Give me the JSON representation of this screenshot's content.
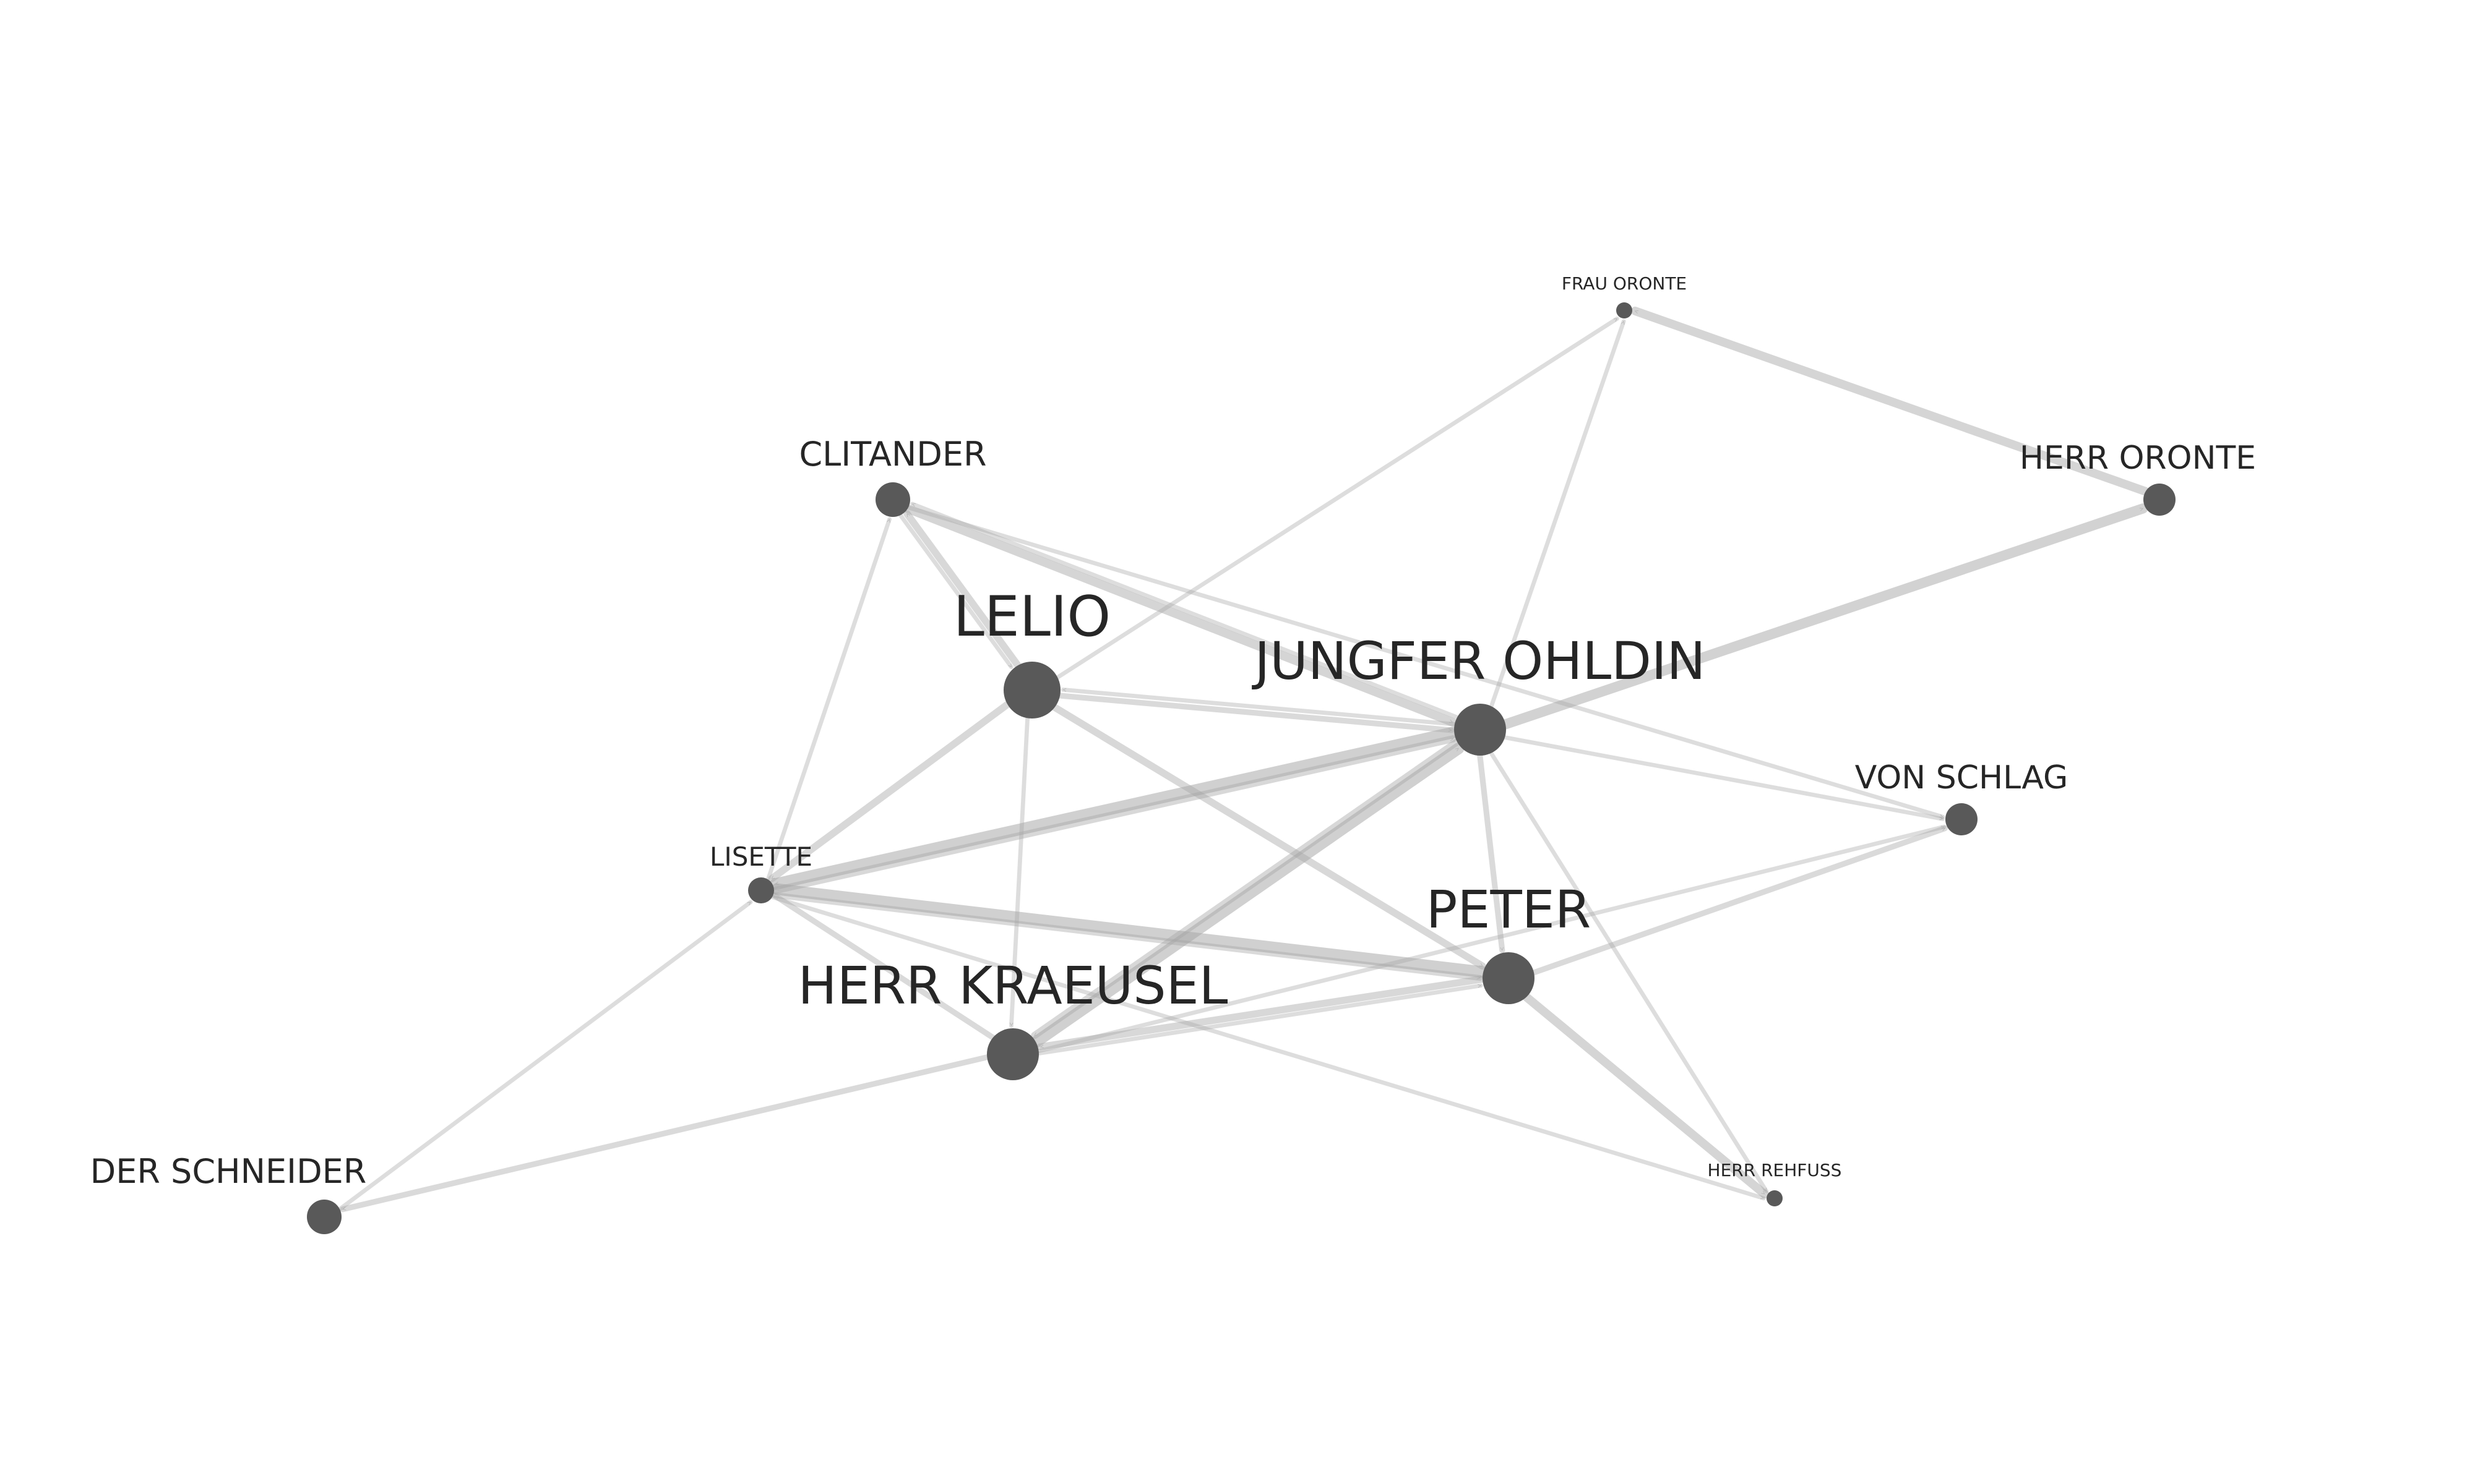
{
  "graph": {
    "style": {
      "node_color": "#595959",
      "edge_color": "#a6a6a6",
      "label_color": "#262626",
      "background": "#ffffff"
    },
    "nodes": [
      {
        "id": "frau_oronte",
        "label": "FRAU ORONTE",
        "weight": 1
      },
      {
        "id": "herr_oronte",
        "label": "HERR ORONTE",
        "weight": 3
      },
      {
        "id": "clitander",
        "label": "CLITANDER",
        "weight": 3
      },
      {
        "id": "lelio",
        "label": "LELIO",
        "weight": 6
      },
      {
        "id": "jungfer_ohldin",
        "label": "JUNGFER OHLDIN",
        "weight": 5
      },
      {
        "id": "von_schlag",
        "label": "VON SCHLAG",
        "weight": 3
      },
      {
        "id": "lisette",
        "label": "LISETTE",
        "weight": 2
      },
      {
        "id": "peter",
        "label": "PETER",
        "weight": 5
      },
      {
        "id": "herr_kraeusel",
        "label": "HERR KRAEUSEL",
        "weight": 5
      },
      {
        "id": "der_schneider",
        "label": "DER SCHNEIDER",
        "weight": 3
      },
      {
        "id": "herr_rehfuss",
        "label": "HERR REHFUSS",
        "weight": 1
      }
    ],
    "edges": [
      {
        "source": "herr_oronte",
        "target": "frau_oronte",
        "weight": 5
      },
      {
        "source": "jungfer_ohldin",
        "target": "herr_oronte",
        "weight": 6
      },
      {
        "source": "lelio",
        "target": "frau_oronte",
        "weight": 2
      },
      {
        "source": "jungfer_ohldin",
        "target": "frau_oronte",
        "weight": 2
      },
      {
        "source": "clitander",
        "target": "jungfer_ohldin",
        "weight": 5
      },
      {
        "source": "jungfer_ohldin",
        "target": "clitander",
        "weight": 2
      },
      {
        "source": "lelio",
        "target": "clitander",
        "weight": 4
      },
      {
        "source": "clitander",
        "target": "lelio",
        "weight": 2
      },
      {
        "source": "lisette",
        "target": "clitander",
        "weight": 2
      },
      {
        "source": "lelio",
        "target": "jungfer_ohldin",
        "weight": 3
      },
      {
        "source": "jungfer_ohldin",
        "target": "lelio",
        "weight": 2
      },
      {
        "source": "lelio",
        "target": "lisette",
        "weight": 4
      },
      {
        "source": "lelio",
        "target": "peter",
        "weight": 4
      },
      {
        "source": "lelio",
        "target": "herr_kraeusel",
        "weight": 2
      },
      {
        "source": "jungfer_ohldin",
        "target": "lisette",
        "weight": 7
      },
      {
        "source": "lisette",
        "target": "jungfer_ohldin",
        "weight": 4
      },
      {
        "source": "herr_kraeusel",
        "target": "jungfer_ohldin",
        "weight": 7
      },
      {
        "source": "jungfer_ohldin",
        "target": "herr_kraeusel",
        "weight": 4
      },
      {
        "source": "jungfer_ohldin",
        "target": "peter",
        "weight": 3
      },
      {
        "source": "jungfer_ohldin",
        "target": "von_schlag",
        "weight": 2
      },
      {
        "source": "clitander",
        "target": "von_schlag",
        "weight": 2
      },
      {
        "source": "jungfer_ohldin",
        "target": "herr_rehfuss",
        "weight": 2
      },
      {
        "source": "peter",
        "target": "lisette",
        "weight": 7
      },
      {
        "source": "lisette",
        "target": "peter",
        "weight": 3
      },
      {
        "source": "peter",
        "target": "herr_kraeusel",
        "weight": 4
      },
      {
        "source": "herr_kraeusel",
        "target": "peter",
        "weight": 2
      },
      {
        "source": "peter",
        "target": "von_schlag",
        "weight": 3
      },
      {
        "source": "herr_kraeusel",
        "target": "von_schlag",
        "weight": 2
      },
      {
        "source": "peter",
        "target": "herr_rehfuss",
        "weight": 5
      },
      {
        "source": "lisette",
        "target": "herr_rehfuss",
        "weight": 2
      },
      {
        "source": "herr_kraeusel",
        "target": "lisette",
        "weight": 3
      },
      {
        "source": "herr_kraeusel",
        "target": "der_schneider",
        "weight": 3
      },
      {
        "source": "der_schneider",
        "target": "lisette",
        "weight": 2
      }
    ]
  }
}
